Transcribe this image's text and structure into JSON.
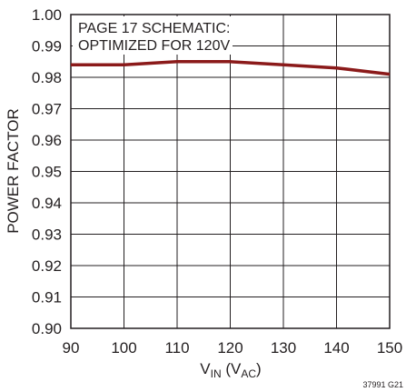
{
  "chart_data": {
    "type": "line",
    "title": "",
    "xlabel": {
      "main": "V",
      "main_sub": "IN",
      "paren_open": " (V",
      "paren_sub": "AC",
      "paren_close": ")"
    },
    "ylabel": "POWER FACTOR",
    "xlim": [
      90,
      150
    ],
    "ylim": [
      0.9,
      1.0
    ],
    "x_ticks": [
      90,
      100,
      110,
      120,
      130,
      140,
      150
    ],
    "x_tick_labels": [
      "90",
      "100",
      "110",
      "120",
      "130",
      "140",
      "150"
    ],
    "y_ticks": [
      0.9,
      0.91,
      0.92,
      0.93,
      0.94,
      0.95,
      0.96,
      0.97,
      0.98,
      0.99,
      1.0
    ],
    "y_tick_labels": [
      "0.90",
      "0.91",
      "0.92",
      "0.93",
      "0.94",
      "0.95",
      "0.96",
      "0.97",
      "0.98",
      "0.99",
      "1.00"
    ],
    "grid": true,
    "annotation": {
      "line1": "PAGE 17 SCHEMATIC:",
      "line2": "OPTIMIZED FOR 120V"
    },
    "figure_id": "37991 G21",
    "series": [
      {
        "color": "#8b1a1a",
        "x": [
          90,
          100,
          110,
          120,
          130,
          140,
          150
        ],
        "y": [
          0.984,
          0.984,
          0.985,
          0.985,
          0.984,
          0.983,
          0.981
        ]
      }
    ]
  }
}
